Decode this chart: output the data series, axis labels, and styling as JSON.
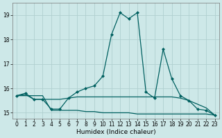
{
  "title": "",
  "xlabel": "Humidex (Indice chaleur)",
  "xlim": [
    -0.5,
    23.5
  ],
  "ylim": [
    14.75,
    19.5
  ],
  "yticks": [
    15,
    16,
    17,
    18,
    19
  ],
  "xticks": [
    0,
    1,
    2,
    3,
    4,
    5,
    6,
    7,
    8,
    9,
    10,
    11,
    12,
    13,
    14,
    15,
    16,
    17,
    18,
    19,
    20,
    21,
    22,
    23
  ],
  "bg_color": "#cde8e8",
  "grid_color": "#b0d0d0",
  "line_color": "#006060",
  "line1_x": [
    0,
    1,
    2,
    3,
    4,
    5,
    6,
    7,
    8,
    9,
    10,
    11,
    12,
    13,
    14,
    15,
    16,
    17,
    18,
    19,
    20,
    21,
    22,
    23
  ],
  "line1_y": [
    15.7,
    15.8,
    15.55,
    15.55,
    15.15,
    15.15,
    15.6,
    15.85,
    16.0,
    16.1,
    16.5,
    18.2,
    19.1,
    18.85,
    19.1,
    15.85,
    15.6,
    17.6,
    16.4,
    15.7,
    15.5,
    15.15,
    15.1,
    14.9
  ],
  "line2_x": [
    0,
    1,
    2,
    3,
    4,
    5,
    6,
    7,
    8,
    9,
    10,
    11,
    12,
    13,
    14,
    15,
    16,
    17,
    18,
    19,
    20,
    21,
    22,
    23
  ],
  "line2_y": [
    15.7,
    15.75,
    15.55,
    15.55,
    15.55,
    15.55,
    15.6,
    15.65,
    15.65,
    15.65,
    15.65,
    15.65,
    15.65,
    15.65,
    15.65,
    15.65,
    15.65,
    15.65,
    15.65,
    15.6,
    15.5,
    15.35,
    15.2,
    14.9
  ],
  "line3_x": [
    0,
    1,
    2,
    3,
    4,
    5,
    6,
    7,
    8,
    9,
    10,
    11,
    12,
    13,
    14,
    15,
    16,
    17,
    18,
    19,
    20,
    21,
    22,
    23
  ],
  "line3_y": [
    15.7,
    15.7,
    15.7,
    15.7,
    15.1,
    15.1,
    15.1,
    15.1,
    15.05,
    15.05,
    15.0,
    15.0,
    15.0,
    15.0,
    14.95,
    14.95,
    14.95,
    14.95,
    14.95,
    14.95,
    14.95,
    14.95,
    14.95,
    14.9
  ],
  "marker_style": "D",
  "marker_size": 2.0,
  "linewidth": 0.9,
  "tick_fontsize": 5.5,
  "xlabel_fontsize": 6.5
}
